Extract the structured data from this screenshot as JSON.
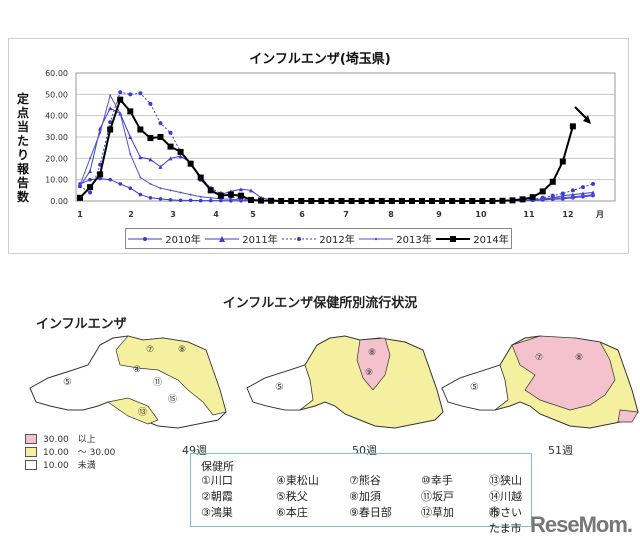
{
  "chart": {
    "title": "インフルエンザ(埼玉県)",
    "ylabel": "定点当たり報告数",
    "yticks": [
      "60.00",
      "50.00",
      "40.00",
      "30.00",
      "20.00",
      "10.00",
      "0.00"
    ],
    "xticks": [
      "1",
      "2",
      "3",
      "4",
      "5",
      "6",
      "7",
      "8",
      "9",
      "10",
      "11",
      "12",
      "月"
    ],
    "legend": [
      "2010年",
      "2011年",
      "2012年",
      "2013年",
      "2014年"
    ]
  },
  "chart_data": {
    "type": "line",
    "title": "インフルエンザ(埼玉県)",
    "xlabel": "月",
    "ylabel": "定点当たり報告数",
    "ylim": [
      0,
      60
    ],
    "yticks": [
      0,
      10,
      20,
      30,
      40,
      50,
      60
    ],
    "x_ticks": [
      "1",
      "2",
      "3",
      "4",
      "5",
      "6",
      "7",
      "8",
      "9",
      "10",
      "11",
      "12",
      "月"
    ],
    "x": "week 1..52",
    "grid": true,
    "legend_position": "bottom",
    "series": [
      {
        "name": "2010年",
        "style": "blue solid, circle markers",
        "values": [
          8,
          10,
          10.5,
          10,
          8,
          6,
          3,
          1.5,
          1,
          0.5,
          0.3,
          0.3,
          0.2,
          0.2,
          0.2,
          0.1,
          0.1,
          0.1,
          0.1,
          0.1,
          0,
          0,
          0,
          0,
          0,
          0,
          0,
          0,
          0,
          0,
          0,
          0,
          0,
          0,
          0,
          0,
          0,
          0,
          0,
          0,
          0,
          0,
          0,
          0,
          0.2,
          0.3,
          0.5,
          0.8,
          1.0,
          1.5,
          2,
          2.5
        ]
      },
      {
        "name": "2011年",
        "style": "blue solid, triangle markers",
        "values": [
          7,
          14,
          34,
          43.5,
          41,
          30,
          20.5,
          19.5,
          16,
          20,
          21,
          18,
          10,
          5,
          3,
          4.5,
          5.5,
          5,
          1.5,
          0.5,
          0.2,
          0.1,
          0,
          0,
          0,
          0,
          0,
          0,
          0,
          0,
          0,
          0,
          0,
          0,
          0,
          0,
          0,
          0,
          0,
          0,
          0,
          0,
          0,
          0,
          0.3,
          0.5,
          1,
          1.5,
          2.5,
          3,
          3.5,
          4
        ]
      },
      {
        "name": "2012年",
        "style": "blue dotted, circle markers",
        "values": [
          7,
          4,
          17,
          37,
          51,
          50,
          50.5,
          45.5,
          36.5,
          32,
          23,
          17,
          11,
          6,
          3.5,
          2,
          1,
          0.5,
          0.2,
          0.1,
          0,
          0,
          0,
          0,
          0,
          0,
          0,
          0,
          0,
          0,
          0,
          0,
          0,
          0,
          0,
          0,
          0,
          0,
          0,
          0,
          0,
          0,
          0,
          0,
          0.3,
          0.8,
          1.5,
          2.5,
          3.5,
          5,
          6.5,
          8
        ]
      },
      {
        "name": "2013年",
        "style": "blue solid, small markers",
        "values": [
          7.5,
          20,
          32,
          49.5,
          41,
          22,
          11,
          8,
          6,
          5,
          4,
          3,
          2,
          1.5,
          1,
          0.8,
          0.5,
          0.3,
          0.2,
          0.1,
          0,
          0,
          0,
          0,
          0,
          0,
          0,
          0,
          0,
          0,
          0,
          0,
          0,
          0,
          0,
          0,
          0,
          0,
          0,
          0,
          0,
          0,
          0,
          0,
          0.2,
          0.5,
          0.8,
          1.2,
          1.5,
          2,
          2.5,
          3
        ]
      },
      {
        "name": "2014年",
        "style": "black bold, square markers",
        "values": [
          1.5,
          6.5,
          12.5,
          33.5,
          47.5,
          42,
          33.5,
          29.5,
          30,
          25.5,
          23,
          17.5,
          11,
          5,
          2.5,
          3,
          2.5,
          0.5,
          0.2,
          0.1,
          0,
          0,
          0,
          0,
          0,
          0,
          0,
          0,
          0,
          0,
          0,
          0,
          0,
          0,
          0,
          0,
          0,
          0,
          0,
          0,
          0,
          0,
          0.1,
          0.3,
          0.8,
          1.8,
          4.5,
          9,
          18.5,
          35
        ]
      }
    ],
    "annotations": [
      "arrow pointing to latest 2014 value (~35)"
    ]
  },
  "maps": {
    "title": "インフルエンザ保健所別流行状況",
    "caption": "インフルエンザ",
    "weeks": [
      "49週",
      "50週",
      "51週"
    ],
    "legend": [
      {
        "range": "30.00　以上",
        "color": "#f4c2cc"
      },
      {
        "range": "10.00　～ 30.00",
        "color": "#f5f0a0"
      },
      {
        "range": "10.00　未満",
        "color": "#ffffff"
      }
    ]
  },
  "key": {
    "title": "保健所",
    "items": [
      "①川口",
      "②朝霞",
      "③鴻巣",
      "④東松山",
      "⑤秩父",
      "⑥本庄",
      "⑦熊谷",
      "⑧加須",
      "⑨春日部",
      "⑩幸手",
      "⑪坂戸",
      "⑫草加",
      "⑬狭山",
      "⑭川越市",
      "⑮さいたま市"
    ]
  },
  "logo": "ReseMom."
}
